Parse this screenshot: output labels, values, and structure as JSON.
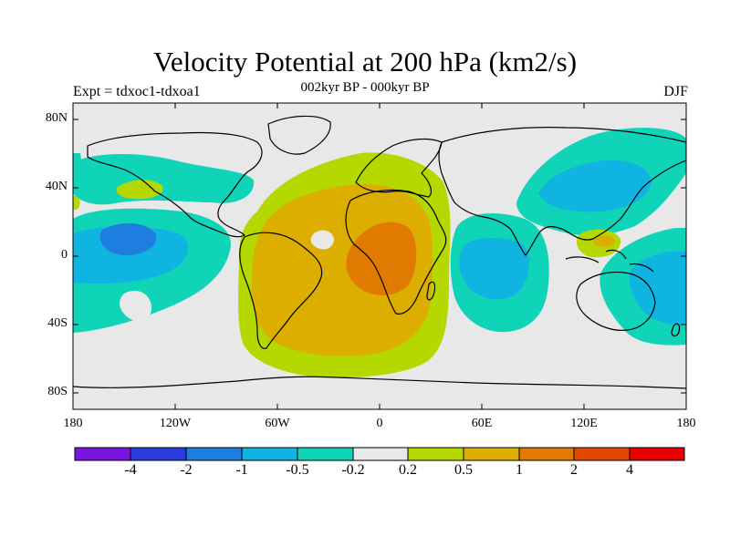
{
  "title": "Velocity Potential at 200 hPa (km2/s)",
  "subtitle": "002kyr BP - 000kyr BP",
  "left_label": "Expt = tdxoc1-tdxoa1",
  "right_label": "DJF",
  "lat_labels": [
    "80N",
    "40N",
    "0",
    "40S",
    "80S"
  ],
  "lon_labels": [
    "180",
    "120W",
    "60W",
    "0",
    "60E",
    "120E",
    "180"
  ],
  "colorbar": {
    "colors": [
      "#7a14e0",
      "#2a3ce0",
      "#1e7ee0",
      "#10b4e0",
      "#10d4b8",
      "#e8e8e8",
      "#b4d800",
      "#dcae00",
      "#e07a00",
      "#e04800",
      "#e80000"
    ],
    "labels": [
      "-4",
      "-2",
      "-1",
      "-0.5",
      "-0.2",
      "0.2",
      "0.5",
      "1",
      "2",
      "4"
    ]
  },
  "colors": {
    "neutral": "#e8e8e8",
    "neg_light": "#10d4b8",
    "neg_mid": "#10b4e0",
    "neg_dark": "#1e7ee0",
    "pos_light": "#b4d800",
    "pos_mid": "#dcae00",
    "pos_dark": "#e07a00"
  }
}
